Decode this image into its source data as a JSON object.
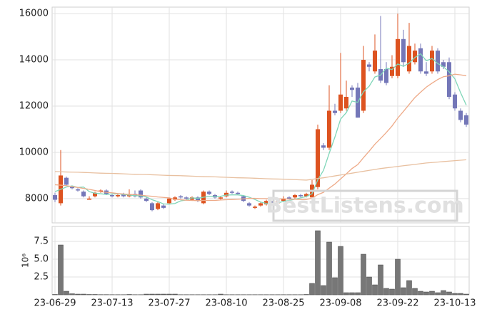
{
  "chart_data": [
    {
      "type": "candlestick",
      "open": [
        8150,
        7800,
        8900,
        8500,
        8400,
        8300,
        7950,
        8100,
        8300,
        8350,
        8150,
        8100,
        8200,
        8100,
        8200,
        8350,
        8000,
        7800,
        7550,
        7700,
        7800,
        7950,
        8100,
        8050,
        7950,
        8050,
        7800,
        8300,
        8150,
        8000,
        8100,
        8300,
        8250,
        8100,
        7800,
        7600,
        7700,
        7750,
        7850,
        7800,
        7900,
        8050,
        8050,
        8150,
        8100,
        8050,
        8500,
        10300,
        10200,
        11800,
        11800,
        11900,
        12800,
        12800,
        11800,
        13800,
        13500,
        13600,
        13600,
        13300,
        13300,
        14900,
        13500,
        13900,
        14500,
        13500,
        13500,
        14400,
        13900,
        13900,
        12500,
        11800,
        11600
      ],
      "high": [
        8250,
        10100,
        8950,
        8550,
        8450,
        8350,
        8100,
        8300,
        8400,
        8400,
        8200,
        8200,
        8250,
        8400,
        8350,
        8400,
        8050,
        7850,
        7850,
        7750,
        8050,
        8100,
        8150,
        8100,
        8100,
        8100,
        8350,
        8350,
        8200,
        8100,
        8350,
        8350,
        8300,
        8150,
        7850,
        7700,
        7850,
        7950,
        7900,
        7950,
        8100,
        8100,
        8200,
        8200,
        8250,
        8800,
        11200,
        10400,
        12900,
        12100,
        14300,
        13100,
        12900,
        13000,
        14600,
        13900,
        15100,
        15900,
        13900,
        14200,
        16000,
        15300,
        15600,
        14700,
        14700,
        13900,
        14600,
        14500,
        14000,
        14100,
        12600,
        11900,
        11700
      ],
      "low": [
        7850,
        7700,
        8550,
        8400,
        8300,
        8050,
        7950,
        8050,
        8250,
        8150,
        8050,
        8050,
        8050,
        8050,
        8050,
        8000,
        7850,
        7450,
        7500,
        7550,
        7750,
        7900,
        8000,
        7950,
        7900,
        7850,
        7750,
        8150,
        8000,
        7950,
        8050,
        8200,
        8150,
        7850,
        7650,
        7550,
        7650,
        7700,
        7750,
        7750,
        7850,
        7950,
        8000,
        8050,
        8050,
        8000,
        8400,
        10100,
        10100,
        11600,
        11700,
        11800,
        12400,
        11500,
        11700,
        13500,
        13400,
        13000,
        12900,
        13200,
        13200,
        13700,
        13400,
        13800,
        13400,
        13300,
        13400,
        13400,
        13600,
        12300,
        11800,
        11300,
        11100
      ],
      "close": [
        7950,
        9000,
        8600,
        8450,
        8350,
        8100,
        8000,
        8250,
        8350,
        8200,
        8100,
        8150,
        8100,
        8200,
        8100,
        8050,
        7900,
        7500,
        7800,
        7600,
        8000,
        8050,
        8050,
        8000,
        8050,
        7900,
        8300,
        8200,
        8050,
        8050,
        8250,
        8250,
        8200,
        7900,
        7700,
        7650,
        7800,
        7900,
        7800,
        7900,
        8000,
        8000,
        8150,
        8100,
        8200,
        8600,
        11000,
        10200,
        11800,
        11700,
        12500,
        12400,
        12700,
        11500,
        14000,
        13700,
        14400,
        13100,
        13000,
        13700,
        14900,
        13900,
        14600,
        14400,
        13500,
        13400,
        14400,
        13500,
        13700,
        12400,
        11900,
        11400,
        11200
      ],
      "up_color": "#dd5320",
      "down_color": "#7477b8",
      "series": [
        {
          "color": "#7fd6b8",
          "values": [
            8300,
            8400,
            8500,
            8550,
            8480,
            8500,
            8300,
            8230,
            8210,
            8180,
            8200,
            8210,
            8180,
            8150,
            8130,
            8120,
            8070,
            7950,
            7870,
            7770,
            7760,
            7790,
            7900,
            7940,
            8030,
            8010,
            8060,
            8090,
            8100,
            8100,
            8150,
            8160,
            8160,
            8130,
            8060,
            7960,
            7850,
            7790,
            7770,
            7810,
            7880,
            7920,
            7970,
            8030,
            8090,
            8210,
            8810,
            9220,
            9960,
            10660,
            11440,
            11720,
            12220,
            12160,
            12620,
            12860,
            13260,
            13340,
            13640,
            13580,
            13820,
            13720,
            13860,
            14100,
            14260,
            13960,
            14060,
            13840,
            13700,
            13480,
            13180,
            12580,
            12040
          ]
        },
        {
          "color": "#eeaa88",
          "values": [
            8600,
            8580,
            8560,
            8520,
            8480,
            8440,
            8400,
            8350,
            8300,
            8270,
            8250,
            8220,
            8200,
            8180,
            8170,
            8150,
            8120,
            8100,
            8070,
            8050,
            8030,
            7970,
            7950,
            7930,
            7920,
            7910,
            7920,
            7920,
            7920,
            7940,
            7950,
            7960,
            7970,
            7990,
            8010,
            8010,
            8000,
            8000,
            7990,
            7980,
            7990,
            7980,
            7970,
            7960,
            7960,
            8020,
            8170,
            8270,
            8450,
            8630,
            8850,
            9070,
            9300,
            9470,
            9770,
            10050,
            10350,
            10600,
            10860,
            11140,
            11480,
            11770,
            12070,
            12370,
            12600,
            12820,
            12990,
            13150,
            13270,
            13310,
            13380,
            13350,
            13310
          ]
        },
        {
          "color": "#e8c0a0",
          "values": [
            9170,
            9160,
            9150,
            9145,
            9140,
            9130,
            9120,
            9110,
            9100,
            9095,
            9090,
            9080,
            9070,
            9060,
            9050,
            9045,
            9040,
            9030,
            9020,
            9010,
            9000,
            8995,
            8990,
            8980,
            8970,
            8960,
            8950,
            8945,
            8940,
            8930,
            8920,
            8910,
            8900,
            8895,
            8890,
            8880,
            8870,
            8860,
            8850,
            8845,
            8840,
            8830,
            8820,
            8810,
            8800,
            8830,
            8870,
            8900,
            8940,
            8980,
            9020,
            9060,
            9100,
            9140,
            9180,
            9220,
            9260,
            9300,
            9330,
            9360,
            9390,
            9420,
            9450,
            9480,
            9510,
            9540,
            9560,
            9580,
            9600,
            9620,
            9640,
            9660,
            9680
          ]
        }
      ],
      "ylim": [
        6950,
        16280
      ],
      "yticks": [
        8000,
        10000,
        12000,
        14000,
        16000
      ],
      "grid": true,
      "watermark": "BestListens.com"
    },
    {
      "type": "bar",
      "y_label": "10⁶",
      "color": "#777777",
      "categories": [
        "23-06-29",
        null,
        null,
        null,
        null,
        null,
        null,
        null,
        null,
        null,
        "23-07-13",
        null,
        null,
        null,
        null,
        null,
        null,
        null,
        null,
        null,
        "23-07-27",
        null,
        null,
        null,
        null,
        null,
        null,
        null,
        null,
        null,
        "23-08-10",
        null,
        null,
        null,
        null,
        null,
        null,
        null,
        null,
        null,
        "23-08-25",
        null,
        null,
        null,
        null,
        null,
        null,
        null,
        null,
        null,
        "23-09-08",
        null,
        null,
        null,
        null,
        null,
        null,
        null,
        null,
        null,
        "23-09-22",
        null,
        null,
        null,
        null,
        null,
        null,
        null,
        null,
        null,
        "23-10-13",
        null,
        null
      ],
      "values": [
        0.05,
        7.0,
        0.5,
        0.15,
        0.1,
        0.1,
        0.05,
        0.05,
        0.03,
        0.03,
        0.02,
        0.02,
        0.02,
        0.05,
        0.02,
        0.02,
        0.1,
        0.1,
        0.1,
        0.1,
        0.1,
        0.1,
        0.02,
        0.02,
        0.02,
        0.02,
        0.02,
        0.02,
        0.02,
        0.1,
        0.02,
        0.02,
        0.02,
        0.02,
        0.02,
        0.02,
        0.02,
        0.02,
        0.02,
        0.02,
        0.02,
        0.02,
        0.02,
        0.02,
        0.05,
        1.6,
        9.0,
        1.3,
        7.4,
        2.4,
        6.8,
        0.3,
        0.3,
        0.3,
        5.7,
        2.5,
        1.4,
        4.2,
        0.9,
        0.8,
        5.0,
        1.0,
        2.0,
        0.9,
        0.5,
        0.4,
        0.5,
        0.3,
        0.6,
        0.4,
        0.2,
        0.2,
        0.1
      ],
      "ylim": [
        0,
        9.6
      ],
      "yticks": [
        2.5,
        {
          "value": 5,
          "label": "5.0"
        },
        7.5
      ],
      "grid": true
    }
  ]
}
